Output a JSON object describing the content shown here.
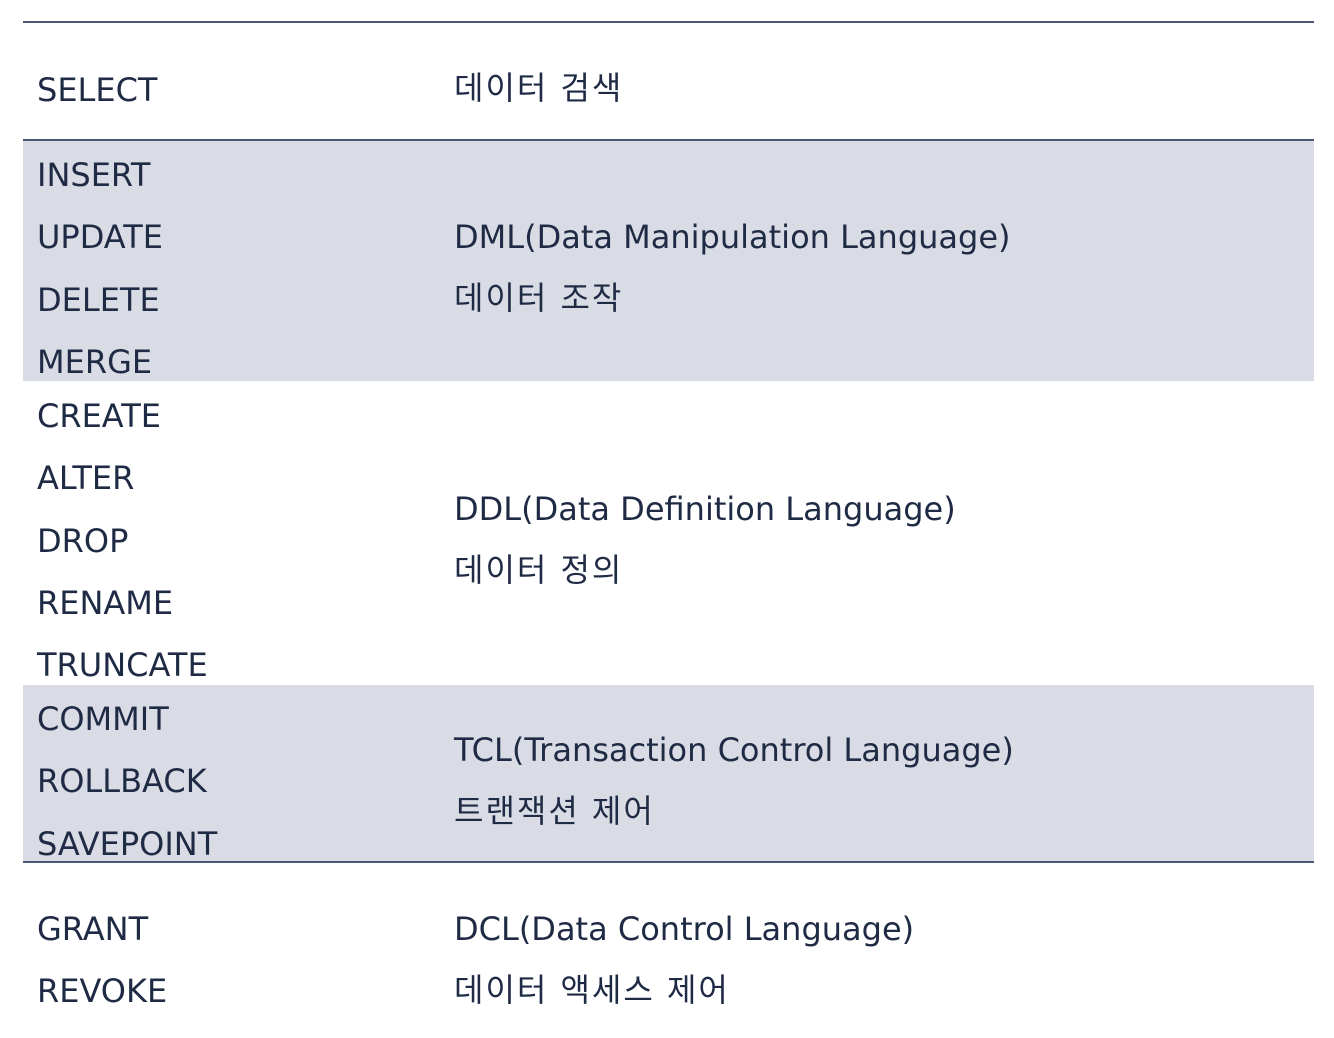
{
  "groups": [
    {
      "commands": [
        "SELECT"
      ],
      "title": "",
      "korean": "데이터 검색"
    },
    {
      "commands": [
        "INSERT",
        "UPDATE",
        "DELETE",
        "MERGE"
      ],
      "title": "DML(Data Manipulation Language)",
      "korean": "데이터 조작"
    },
    {
      "commands": [
        "CREATE",
        "ALTER",
        "DROP",
        "RENAME",
        "TRUNCATE"
      ],
      "title": "DDL(Data Definition Language)",
      "korean": "데이터 정의"
    },
    {
      "commands": [
        "COMMIT",
        "ROLLBACK",
        "SAVEPOINT"
      ],
      "title": "TCL(Transaction Control Language)",
      "korean": "트랜잭션 제어"
    },
    {
      "commands": [
        "GRANT",
        "REVOKE"
      ],
      "title": "DCL(Data Control Language)",
      "korean": "데이터 액세스 제어"
    }
  ],
  "colors": {
    "text": "#1f2a44",
    "rule": "#4b5873",
    "shaded_row": "#d9dce4"
  }
}
